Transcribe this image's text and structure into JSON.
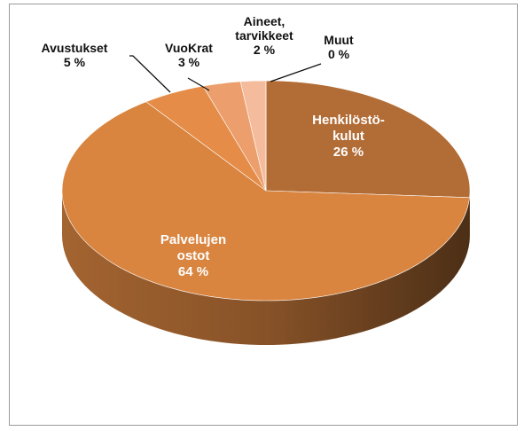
{
  "chart_data": {
    "type": "pie3d",
    "categories": [
      "Henkilöstö-\nkulut",
      "Palvelujen\nostot",
      "Avustukset",
      "VuoKrat",
      "Aineet,\ntarvikkeet",
      "Muut"
    ],
    "values": [
      26,
      64,
      5,
      3,
      2,
      0
    ],
    "value_labels": [
      "26 %",
      "64 %",
      "5 %",
      "3 %",
      "2 %",
      "0 %"
    ],
    "colors": [
      "#b26c35",
      "#d98540",
      "#e58c48",
      "#ec9f6c",
      "#f4bc9c",
      "#f8d3bd"
    ]
  }
}
